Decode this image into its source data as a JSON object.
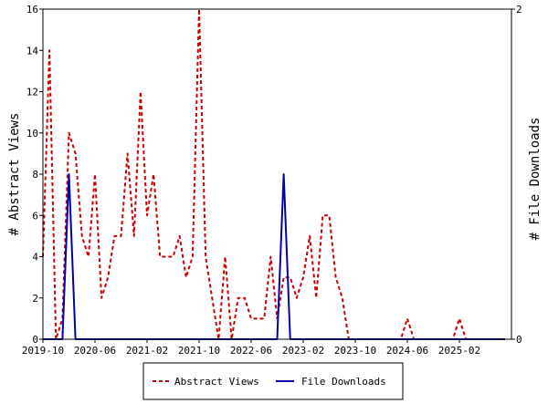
{
  "chart_data": {
    "type": "line",
    "x": [
      "2019-10",
      "2019-11",
      "2019-12",
      "2020-01",
      "2020-02",
      "2020-03",
      "2020-04",
      "2020-05",
      "2020-06",
      "2020-07",
      "2020-08",
      "2020-09",
      "2020-10",
      "2020-11",
      "2020-12",
      "2021-01",
      "2021-02",
      "2021-03",
      "2021-04",
      "2021-05",
      "2021-06",
      "2021-07",
      "2021-08",
      "2021-09",
      "2021-10",
      "2021-11",
      "2021-12",
      "2022-01",
      "2022-02",
      "2022-03",
      "2022-04",
      "2022-05",
      "2022-06",
      "2022-07",
      "2022-08",
      "2022-09",
      "2022-10",
      "2022-11",
      "2022-12",
      "2023-01",
      "2023-02",
      "2023-03",
      "2023-04",
      "2023-05",
      "2023-06",
      "2023-07",
      "2023-08",
      "2023-09",
      "2023-10",
      "2023-11",
      "2023-12",
      "2024-01",
      "2024-02",
      "2024-03",
      "2024-04",
      "2024-05",
      "2024-06",
      "2024-07",
      "2024-08",
      "2024-09",
      "2024-10",
      "2024-11",
      "2024-12",
      "2025-01",
      "2025-02",
      "2025-03",
      "2025-04",
      "2025-05",
      "2025-06",
      "2025-07",
      "2025-08",
      "2025-09"
    ],
    "x_tick_labels": [
      "2019-10",
      "2020-06",
      "2021-02",
      "2021-10",
      "2022-06",
      "2023-02",
      "2023-10",
      "2024-06",
      "2025-02"
    ],
    "series": [
      {
        "name": "Abstract Views",
        "axis": "left",
        "color": "#cc0000",
        "style": "dashed",
        "values": [
          4,
          14,
          0,
          1,
          10,
          9,
          5,
          4,
          8,
          2,
          3,
          5,
          5,
          9,
          5,
          12,
          6,
          8,
          4,
          4,
          4,
          5,
          3,
          4,
          16,
          4,
          2,
          0,
          4,
          0,
          2,
          2,
          1,
          1,
          1,
          4,
          1,
          3,
          3,
          2,
          3,
          5,
          2,
          6,
          6,
          3,
          2,
          0,
          0,
          0,
          0,
          0,
          0,
          0,
          0,
          0,
          1,
          0,
          0,
          0,
          0,
          0,
          0,
          0,
          1,
          0,
          0,
          0,
          0,
          0,
          0,
          0
        ]
      },
      {
        "name": "File Downloads",
        "axis": "right",
        "color": "#0000aa",
        "style": "solid",
        "values": [
          0,
          0,
          0,
          0,
          1,
          0,
          0,
          0,
          0,
          0,
          0,
          0,
          0,
          0,
          0,
          0,
          0,
          0,
          0,
          0,
          0,
          0,
          0,
          0,
          0,
          0,
          0,
          0,
          0,
          0,
          0,
          0,
          0,
          0,
          0,
          0,
          0,
          1,
          0,
          0,
          0,
          0,
          0,
          0,
          0,
          0,
          0,
          0,
          0,
          0,
          0,
          0,
          0,
          0,
          0,
          0,
          0,
          0,
          0,
          0,
          0,
          0,
          0,
          0,
          0,
          0,
          0,
          0,
          0,
          0,
          0,
          0
        ]
      }
    ],
    "y_left": {
      "label": "# Abstract Views",
      "range": [
        0,
        16
      ],
      "ticks": [
        "0",
        "2",
        "4",
        "6",
        "8",
        "10",
        "12",
        "14",
        "16"
      ]
    },
    "y_right": {
      "label": "# File Downloads",
      "range": [
        0,
        2
      ],
      "ticks": [
        "0",
        "2"
      ]
    },
    "grid": false,
    "legend_position": "bottom-center"
  }
}
